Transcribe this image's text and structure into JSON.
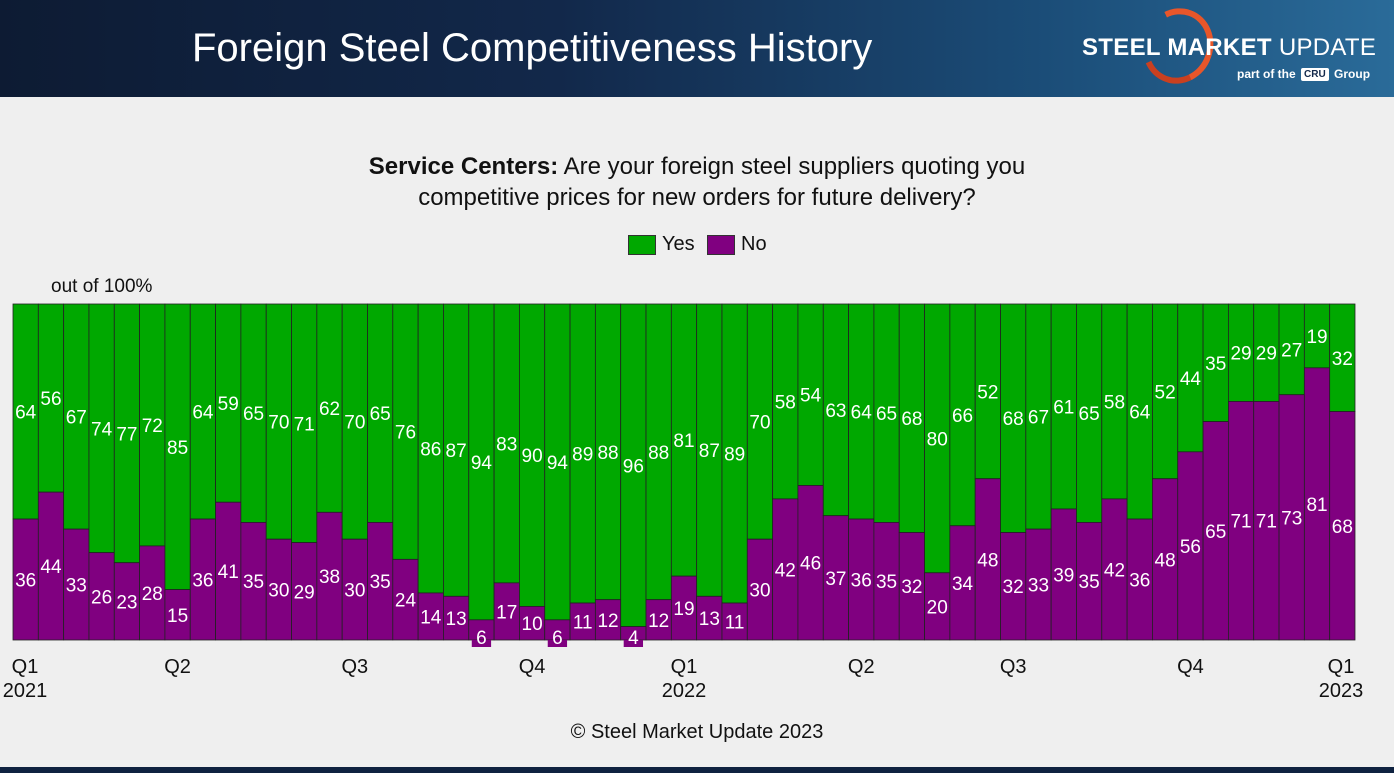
{
  "header": {
    "title": "Foreign Steel Competitiveness History",
    "logo_bold": "STEEL MARKET",
    "logo_light": "UPDATE",
    "logo_sub_pre": "part of the",
    "logo_sub_cru": "CRU",
    "logo_sub_post": "Group"
  },
  "subtitle": {
    "bold": "Service Centers:",
    "line1": "Are your foreign steel suppliers quoting you",
    "line2": "competitive prices for new orders for future delivery?"
  },
  "footer": "© Steel Market Update 2023",
  "colors": {
    "yes": "#00a800",
    "no": "#800080",
    "header_bg": "#12284a",
    "accent": "#e8562a"
  },
  "chart_data": {
    "type": "bar",
    "stacked": true,
    "ylabel": "out of 100%",
    "ylim": [
      0,
      100
    ],
    "legend_position": "top-center",
    "series": [
      {
        "name": "Yes",
        "values": [
          64,
          56,
          67,
          74,
          77,
          72,
          85,
          64,
          59,
          65,
          70,
          71,
          62,
          70,
          65,
          76,
          86,
          87,
          94,
          83,
          90,
          94,
          89,
          88,
          96,
          88,
          81,
          87,
          89,
          70,
          58,
          54,
          63,
          64,
          65,
          68,
          80,
          66,
          52,
          68,
          67,
          61,
          65,
          58,
          64,
          52,
          44,
          35,
          29,
          29,
          27,
          19,
          32
        ]
      },
      {
        "name": "No",
        "values": [
          36,
          44,
          33,
          26,
          23,
          28,
          15,
          36,
          41,
          35,
          30,
          29,
          38,
          30,
          35,
          24,
          14,
          13,
          6,
          17,
          10,
          6,
          11,
          12,
          4,
          12,
          19,
          13,
          11,
          30,
          42,
          46,
          37,
          36,
          35,
          32,
          20,
          34,
          48,
          32,
          33,
          39,
          35,
          42,
          36,
          48,
          56,
          65,
          71,
          71,
          73,
          81,
          68
        ]
      }
    ],
    "x_ticks": [
      {
        "index": 0,
        "label": "Q1",
        "year": "2021"
      },
      {
        "index": 6,
        "label": "Q2"
      },
      {
        "index": 13,
        "label": "Q3"
      },
      {
        "index": 20,
        "label": "Q4"
      },
      {
        "index": 26,
        "label": "Q1",
        "year": "2022"
      },
      {
        "index": 33,
        "label": "Q2"
      },
      {
        "index": 39,
        "label": "Q3"
      },
      {
        "index": 46,
        "label": "Q4"
      },
      {
        "index": 52,
        "label": "Q1",
        "year": "2023"
      }
    ]
  }
}
